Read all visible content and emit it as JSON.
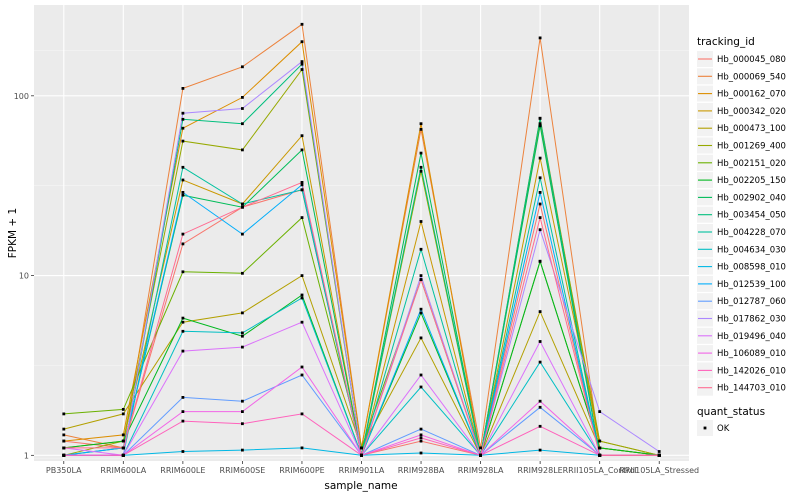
{
  "chart_data": {
    "type": "line",
    "xlabel": "sample_name",
    "ylabel": "FPKM + 1",
    "ylog": true,
    "ylim": [
      0.93,
      320
    ],
    "yticks": [
      1,
      10,
      100
    ],
    "grid": true,
    "categories": [
      "PB350LA",
      "RRIM600LA",
      "RRIM600LE",
      "RRIM600SE",
      "RRIM600PE",
      "RRIM901LA",
      "RRIM928BA",
      "RRIM928LA",
      "RRIM928LE",
      "RRII105LA_Control",
      "RRII105LA_Stressed"
    ],
    "legend": {
      "title": "tracking_id",
      "position": "right"
    },
    "legend2": {
      "title": "quant_status",
      "items": [
        "OK"
      ]
    },
    "series": [
      {
        "name": "Hb_000045_080",
        "color": "#F8766D",
        "values": [
          1.2,
          1.1,
          15,
          24,
          30,
          1.0,
          1.2,
          1.0,
          25,
          1.0,
          1.0
        ]
      },
      {
        "name": "Hb_000069_540",
        "color": "#EC823C",
        "values": [
          1.3,
          1.1,
          110,
          145,
          250,
          1.1,
          65,
          1.1,
          210,
          1.1,
          1.0
        ]
      },
      {
        "name": "Hb_000162_070",
        "color": "#DC8E00",
        "values": [
          1.2,
          1.3,
          66,
          98,
          200,
          1.1,
          70,
          1.0,
          75,
          1.1,
          1.0
        ]
      },
      {
        "name": "Hb_000342_020",
        "color": "#C99800",
        "values": [
          1.1,
          1.2,
          34,
          25,
          60,
          1.0,
          20,
          1.0,
          45,
          1.2,
          1.0
        ]
      },
      {
        "name": "Hb_000473_100",
        "color": "#B3A000",
        "values": [
          1.4,
          1.7,
          5.5,
          6.2,
          10,
          1.1,
          4.5,
          1.0,
          6.3,
          1.1,
          1.0
        ]
      },
      {
        "name": "Hb_001269_400",
        "color": "#96A900",
        "values": [
          1.0,
          1.2,
          56,
          50,
          140,
          1.0,
          38,
          1.0,
          70,
          1.2,
          1.0
        ]
      },
      {
        "name": "Hb_002151_020",
        "color": "#6BB100",
        "values": [
          1.7,
          1.8,
          10.5,
          10.3,
          21,
          1.1,
          9.5,
          1.0,
          12,
          1.1,
          1.0
        ]
      },
      {
        "name": "Hb_002205_150",
        "color": "#00B81F",
        "values": [
          1.1,
          1.2,
          5.8,
          4.6,
          7.8,
          1.0,
          6.2,
          1.0,
          12,
          1.1,
          1.0
        ]
      },
      {
        "name": "Hb_002902_040",
        "color": "#00BC59",
        "values": [
          1.0,
          1.1,
          28,
          24,
          50,
          1.0,
          48,
          1.0,
          68,
          1.0,
          1.0
        ]
      },
      {
        "name": "Hb_003454_050",
        "color": "#00BF7D",
        "values": [
          1.0,
          1.0,
          74,
          70,
          150,
          1.0,
          40,
          1.0,
          75,
          1.0,
          1.0
        ]
      },
      {
        "name": "Hb_004228_070",
        "color": "#00C19F",
        "values": [
          1.0,
          1.0,
          40,
          25,
          30,
          1.0,
          14,
          1.0,
          35,
          1.0,
          1.0
        ]
      },
      {
        "name": "Hb_004634_030",
        "color": "#00BFC4",
        "values": [
          1.0,
          1.0,
          4.9,
          4.8,
          7.5,
          1.0,
          2.4,
          1.0,
          3.3,
          1.0,
          1.0
        ]
      },
      {
        "name": "Hb_008598_010",
        "color": "#00B8E5",
        "values": [
          1.0,
          1.0,
          1.05,
          1.07,
          1.1,
          1.0,
          1.03,
          1.0,
          1.07,
          1.0,
          1.0
        ]
      },
      {
        "name": "Hb_012539_100",
        "color": "#00ADFA",
        "values": [
          1.0,
          1.1,
          29,
          17,
          32,
          1.0,
          6.5,
          1.0,
          29,
          1.0,
          1.0
        ]
      },
      {
        "name": "Hb_012787_060",
        "color": "#619CFF",
        "values": [
          1.0,
          1.0,
          2.1,
          2.0,
          2.8,
          1.0,
          1.4,
          1.0,
          1.85,
          1.0,
          1.0
        ]
      },
      {
        "name": "Hb_017862_030",
        "color": "#AC88FF",
        "values": [
          1.0,
          1.0,
          80,
          85,
          155,
          1.0,
          10,
          1.0,
          18,
          1.75,
          1.05
        ]
      },
      {
        "name": "Hb_019496_040",
        "color": "#DB72FB",
        "values": [
          1.1,
          1.0,
          3.8,
          4.0,
          5.5,
          1.0,
          2.8,
          1.0,
          4.3,
          1.0,
          1.0
        ]
      },
      {
        "name": "Hb_106089_010",
        "color": "#F265E7",
        "values": [
          1.0,
          1.0,
          1.75,
          1.75,
          3.1,
          1.0,
          1.3,
          1.0,
          2.0,
          1.0,
          1.0
        ]
      },
      {
        "name": "Hb_142026_010",
        "color": "#FF62BC",
        "values": [
          1.0,
          1.0,
          1.55,
          1.5,
          1.7,
          1.0,
          1.25,
          1.0,
          1.45,
          1.0,
          1.0
        ]
      },
      {
        "name": "Hb_144703_010",
        "color": "#FF6C91",
        "values": [
          1.1,
          1.1,
          17,
          24,
          33,
          1.0,
          9.5,
          1.0,
          21,
          1.0,
          1.0
        ]
      }
    ]
  }
}
